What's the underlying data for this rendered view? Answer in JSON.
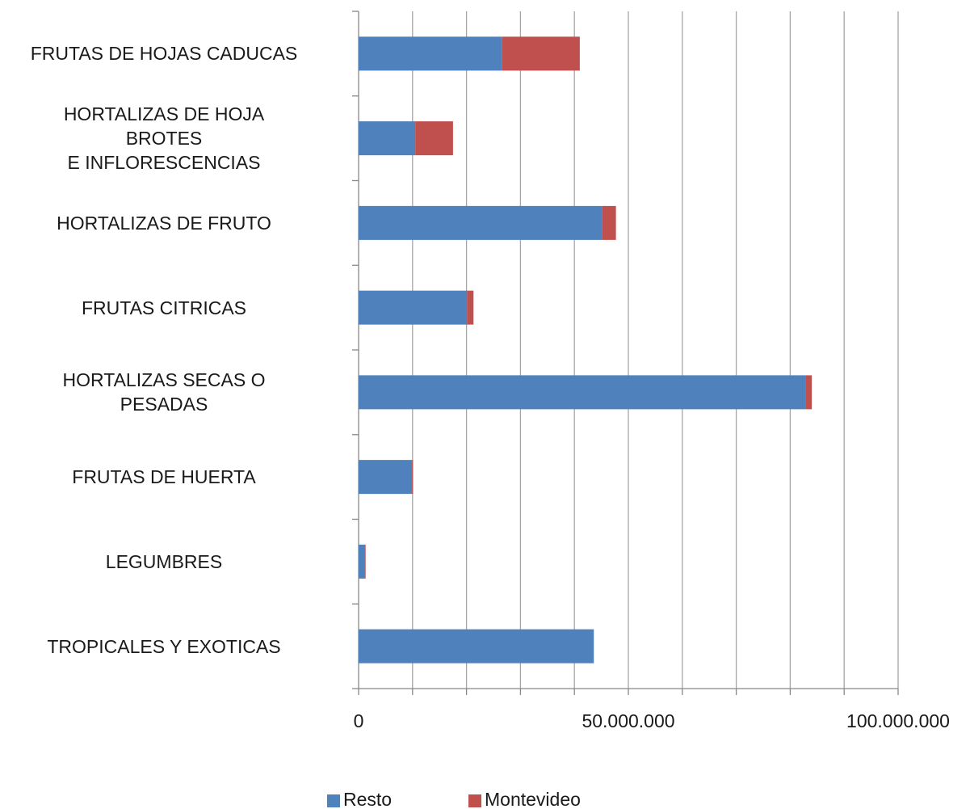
{
  "chart_data": {
    "type": "stacked_barh",
    "categories": [
      "FRUTAS DE HOJAS CADUCAS",
      "HORTALIZAS DE HOJA\nBROTES\nE INFLORESCENCIAS",
      "HORTALIZAS DE FRUTO",
      "FRUTAS CITRICAS",
      "HORTALIZAS SECAS O\nPESADAS",
      "FRUTAS DE HUERTA",
      "LEGUMBRES",
      "TROPICALES Y EXOTICAS"
    ],
    "series": [
      {
        "name": "Resto",
        "color": "#4f81bd",
        "values": [
          26600000,
          10500000,
          45200000,
          20100000,
          82800000,
          9900000,
          1200000,
          43600000
        ]
      },
      {
        "name": "Montevideo",
        "color": "#c0504d",
        "values": [
          14400000,
          7000000,
          2500000,
          1200000,
          1200000,
          200000,
          100000,
          0
        ]
      }
    ],
    "xlim": [
      0,
      100000000
    ],
    "xticks": [
      0,
      {
        "value": 50000000,
        "label": "50.000.000"
      },
      {
        "value": 100000000,
        "label": "100.000.000"
      }
    ],
    "minor_xticks": [
      10000000,
      20000000,
      30000000,
      40000000,
      60000000,
      70000000,
      80000000,
      90000000
    ],
    "grid": true,
    "legend": "bottom"
  }
}
